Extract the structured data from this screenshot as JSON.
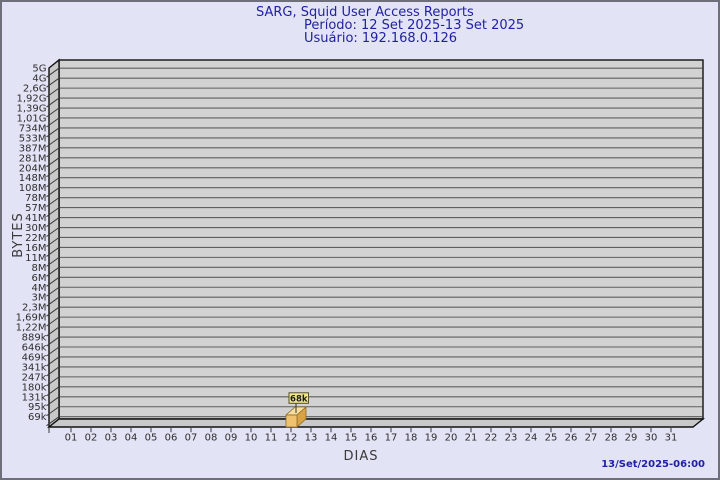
{
  "title": {
    "line1": "SARG, Squid User Access Reports",
    "line2": "Período: 12 Set 2025-13 Set 2025",
    "line3": "Usuário: 192.168.0.126"
  },
  "footer": {
    "timestamp": "13/Set/2025-06:00"
  },
  "chart_data": {
    "type": "bar",
    "title": "SARG, Squid User Access Reports",
    "subtitle_period": "Período: 12 Set 2025-13 Set 2025",
    "subtitle_user": "Usuário: 192.168.0.126",
    "xlabel": "DIAS",
    "ylabel": "BYTES",
    "y_scale": "logarithmic",
    "grid": true,
    "y_tick_labels": [
      "5G",
      "4G",
      "2,6G",
      "1,92G",
      "1,39G",
      "1,01G",
      "734M",
      "533M",
      "387M",
      "281M",
      "204M",
      "148M",
      "108M",
      "78M",
      "57M",
      "41M",
      "30M",
      "22M",
      "16M",
      "11M",
      "8M",
      "6M",
      "4M",
      "3M",
      "2,3M",
      "1,69M",
      "1,22M",
      "889k",
      "646k",
      "469k",
      "341k",
      "247k",
      "180k",
      "131k",
      "95k",
      "69k"
    ],
    "x_categories": [
      "01",
      "02",
      "03",
      "04",
      "05",
      "06",
      "07",
      "08",
      "09",
      "10",
      "11",
      "12",
      "13",
      "14",
      "15",
      "16",
      "17",
      "18",
      "19",
      "20",
      "21",
      "22",
      "23",
      "24",
      "25",
      "26",
      "27",
      "28",
      "29",
      "30",
      "31"
    ],
    "bars": [
      {
        "day": "12",
        "value_label": "68k",
        "approx_bytes": 68000
      }
    ]
  },
  "colors": {
    "background": "#e3e3f6",
    "title_text": "#2121a3",
    "plot_bg": "#d2d2d2",
    "wall": "#c9c9c9",
    "grid_line": "#5e5e5e",
    "frame_line": "#111111",
    "axis_text": "#2e2e2e",
    "bar_front": "#f1c26d",
    "bar_top": "#f8dd9d",
    "bar_side": "#d9a245",
    "bar_edge": "#8a6a2a",
    "flag_bg": "#f2e88e",
    "flag_border": "#55512a",
    "flag_text": "#1a1a1a"
  }
}
